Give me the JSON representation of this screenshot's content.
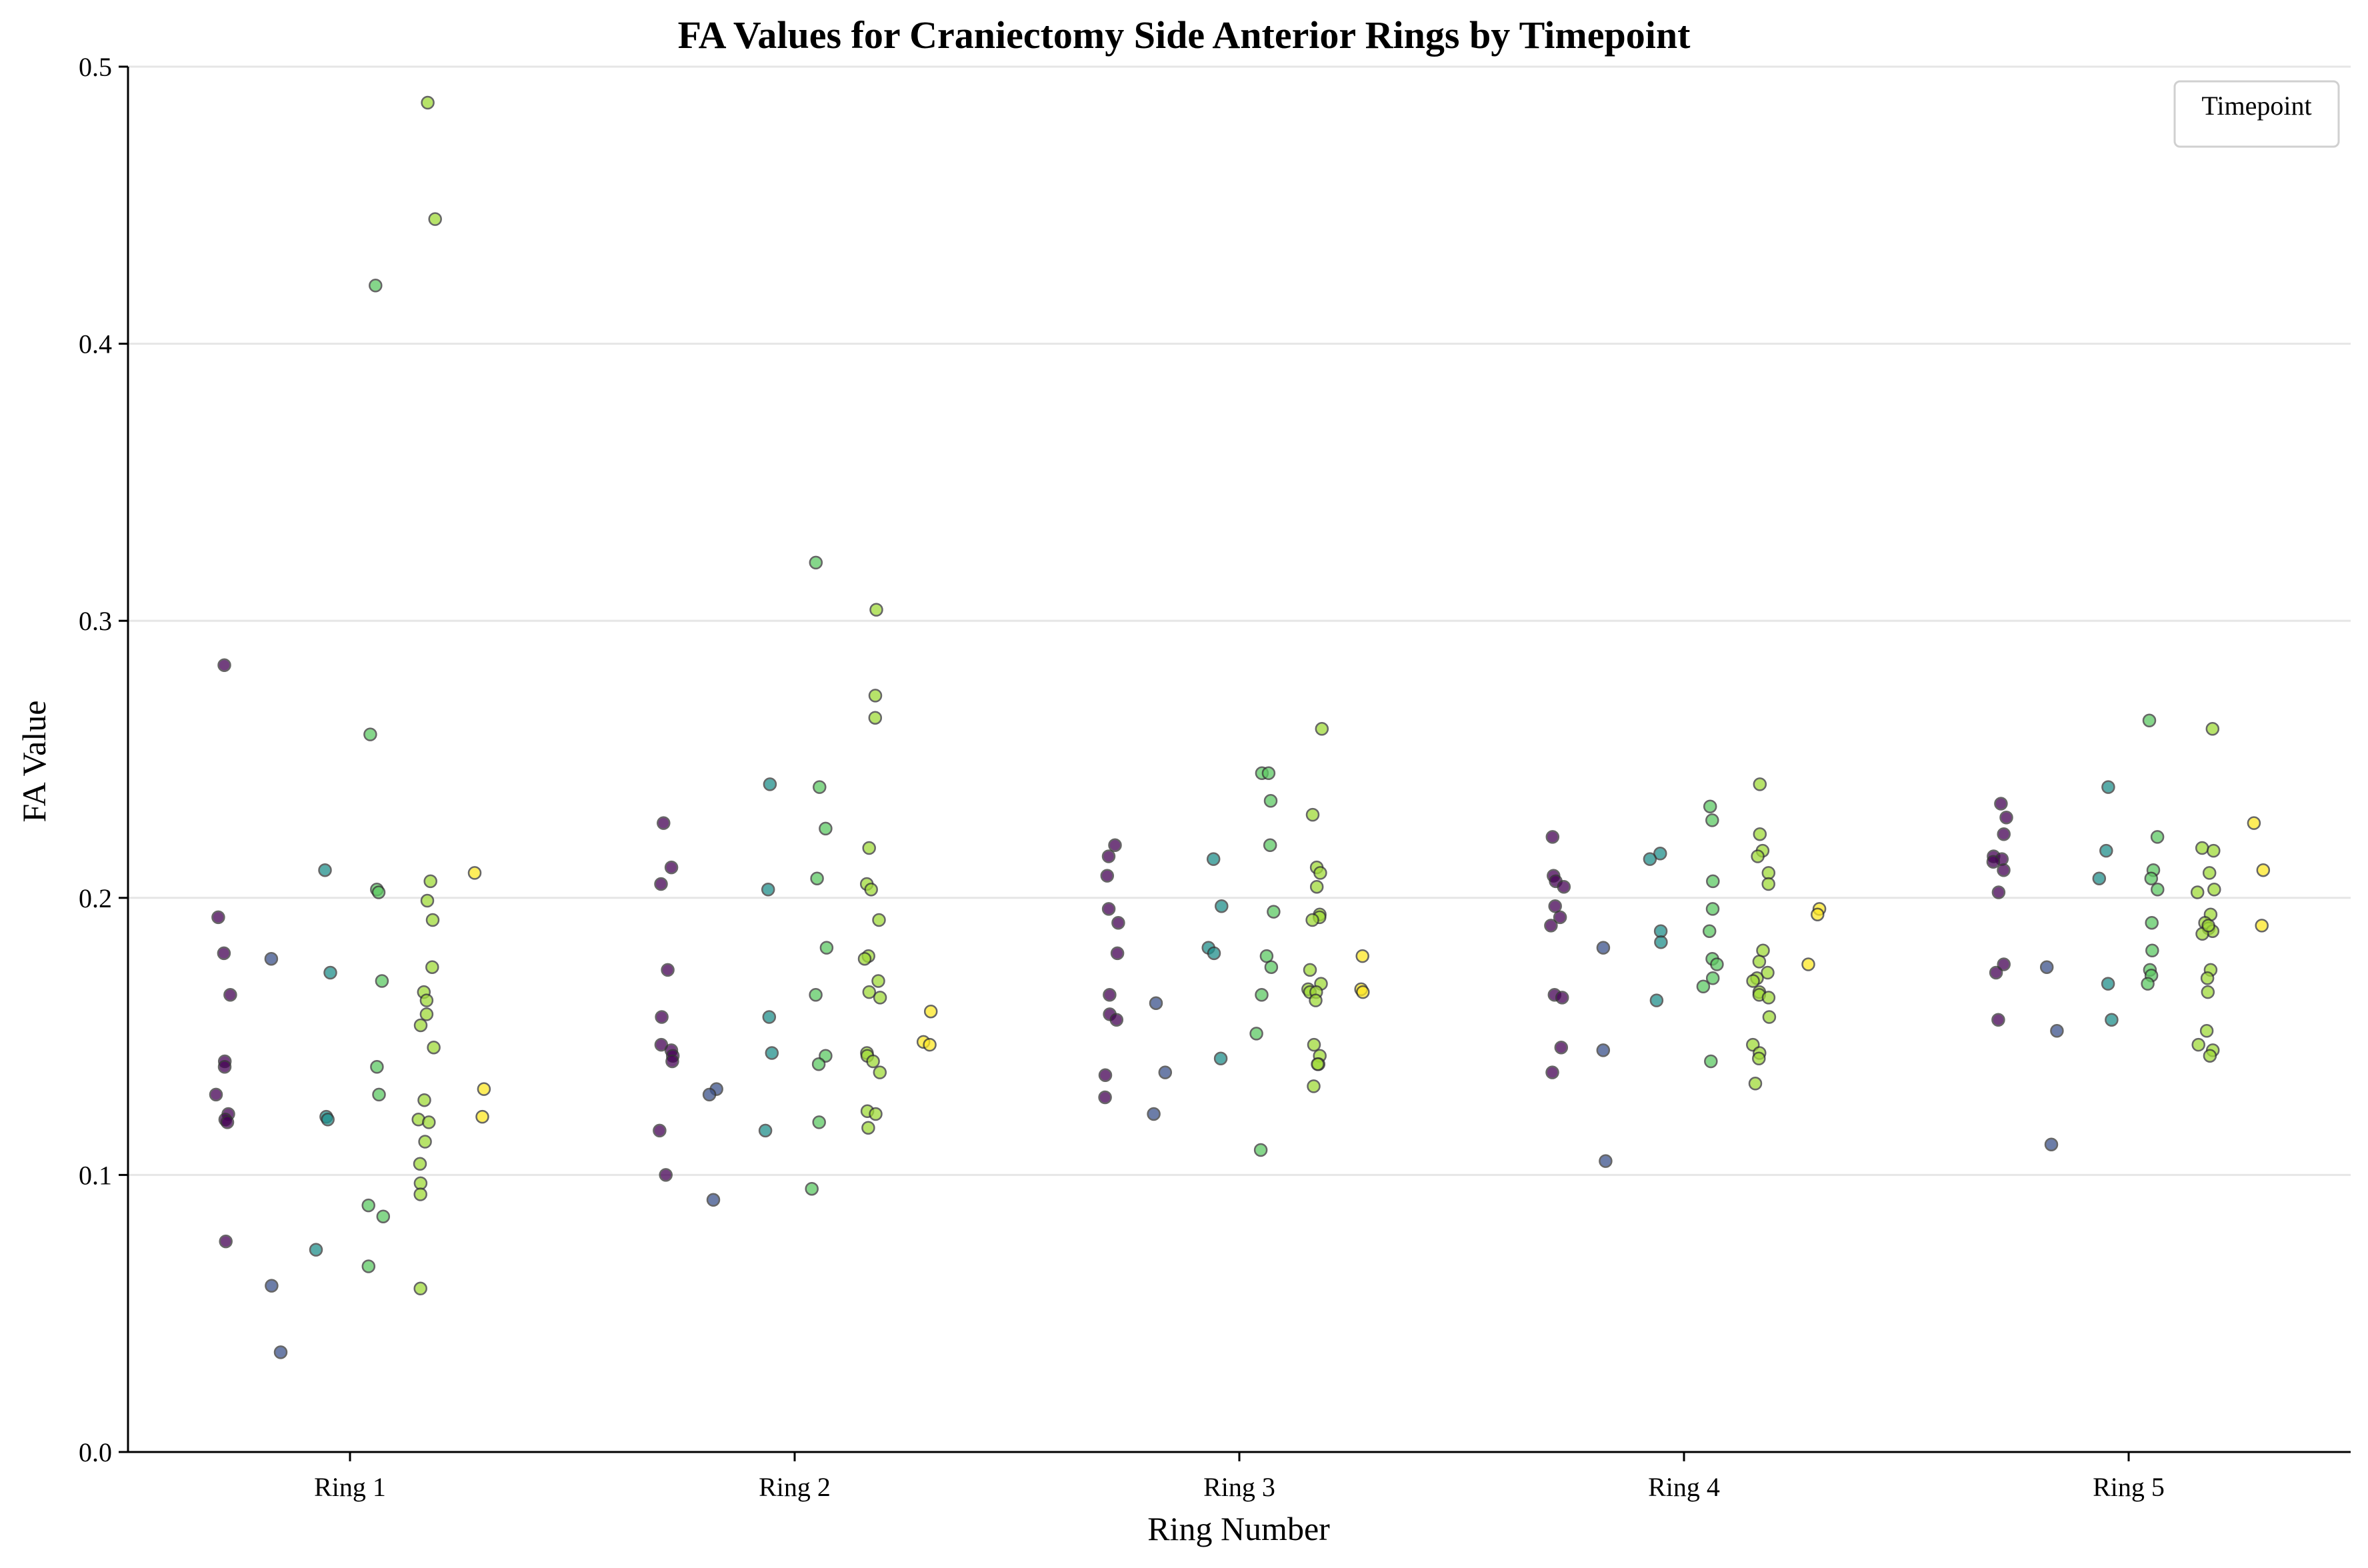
{
  "chart_data": {
    "type": "scatter",
    "title": "FA Values for Craniectomy Side Anterior Rings by Timepoint",
    "xlabel": "Ring Number",
    "ylabel": "FA Value",
    "categories": [
      "Ring 1",
      "Ring 2",
      "Ring 3",
      "Ring 4",
      "Ring 5"
    ],
    "ylim": [
      0,
      0.5
    ],
    "yticks": [
      "0.0",
      "0.1",
      "0.2",
      "0.3",
      "0.4",
      "0.5"
    ],
    "grid": "horizontal",
    "legend": {
      "title": "Timepoint",
      "placement": "top-right"
    },
    "group_colors": [
      "#440154",
      "#3b528b",
      "#21908c",
      "#5dc963",
      "#a0da39",
      "#fde725"
    ],
    "series": [
      {
        "values": [
          [
            0.284,
            0.193,
            0.18,
            0.165,
            0.141,
            0.139,
            0.129,
            0.122,
            0.12,
            0.119,
            0.076
          ],
          [
            0.227,
            0.211,
            0.205,
            0.174,
            0.157,
            0.147,
            0.145,
            0.143,
            0.141,
            0.116,
            0.1
          ],
          [
            0.219,
            0.215,
            0.208,
            0.196,
            0.191,
            0.18,
            0.165,
            0.158,
            0.156,
            0.136,
            0.128
          ],
          [
            0.222,
            0.208,
            0.206,
            0.204,
            0.197,
            0.193,
            0.19,
            0.165,
            0.164,
            0.146,
            0.137
          ],
          [
            0.234,
            0.229,
            0.223,
            0.215,
            0.214,
            0.213,
            0.21,
            0.202,
            0.176,
            0.173,
            0.156
          ]
        ]
      },
      {
        "values": [
          [
            0.178,
            0.06,
            0.036
          ],
          [
            0.131,
            0.129,
            0.091
          ],
          [
            0.162,
            0.137,
            0.122
          ],
          [
            0.182,
            0.145,
            0.105
          ],
          [
            0.175,
            0.152,
            0.111
          ]
        ]
      },
      {
        "values": [
          [
            0.21,
            0.173,
            0.121,
            0.12,
            0.073
          ],
          [
            0.241,
            0.203,
            0.157,
            0.144,
            0.116
          ],
          [
            0.214,
            0.197,
            0.182,
            0.18,
            0.142
          ],
          [
            0.216,
            0.214,
            0.188,
            0.184,
            0.163
          ],
          [
            0.24,
            0.217,
            0.207,
            0.169,
            0.156
          ]
        ]
      },
      {
        "values": [
          [
            0.421,
            0.259,
            0.203,
            0.202,
            0.17,
            0.139,
            0.129,
            0.089,
            0.085,
            0.067
          ],
          [
            0.321,
            0.24,
            0.225,
            0.207,
            0.182,
            0.165,
            0.143,
            0.14,
            0.119,
            0.095
          ],
          [
            0.245,
            0.245,
            0.235,
            0.219,
            0.195,
            0.179,
            0.175,
            0.165,
            0.151,
            0.109
          ],
          [
            0.233,
            0.228,
            0.206,
            0.196,
            0.188,
            0.178,
            0.176,
            0.171,
            0.168,
            0.141
          ],
          [
            0.264,
            0.222,
            0.21,
            0.207,
            0.203,
            0.191,
            0.181,
            0.174,
            0.172,
            0.169
          ]
        ]
      },
      {
        "values": [
          [
            0.487,
            0.445,
            0.206,
            0.199,
            0.192,
            0.175,
            0.166,
            0.163,
            0.158,
            0.154,
            0.146,
            0.127,
            0.12,
            0.119,
            0.112,
            0.104,
            0.097,
            0.093,
            0.059
          ],
          [
            0.304,
            0.273,
            0.265,
            0.218,
            0.205,
            0.203,
            0.192,
            0.179,
            0.178,
            0.17,
            0.166,
            0.164,
            0.144,
            0.143,
            0.141,
            0.137,
            0.123,
            0.122,
            0.117
          ],
          [
            0.261,
            0.23,
            0.211,
            0.209,
            0.204,
            0.194,
            0.193,
            0.192,
            0.174,
            0.169,
            0.167,
            0.166,
            0.166,
            0.163,
            0.147,
            0.143,
            0.14,
            0.14,
            0.132
          ],
          [
            0.241,
            0.223,
            0.217,
            0.215,
            0.209,
            0.205,
            0.181,
            0.177,
            0.173,
            0.171,
            0.17,
            0.166,
            0.165,
            0.164,
            0.157,
            0.147,
            0.144,
            0.142,
            0.133
          ],
          [
            0.261,
            0.218,
            0.217,
            0.209,
            0.203,
            0.194,
            0.191,
            0.189,
            0.188,
            0.187,
            0.174,
            0.171,
            0.166,
            0.152,
            0.147,
            0.145,
            0.143,
            0.202,
            0.19
          ]
        ]
      },
      {
        "values": [
          [
            0.209,
            0.131,
            0.121
          ],
          [
            0.159,
            0.148,
            0.147
          ],
          [
            0.179,
            0.167,
            0.166
          ],
          [
            0.196,
            0.194,
            0.176
          ],
          [
            0.227,
            0.21,
            0.19
          ]
        ]
      }
    ]
  }
}
